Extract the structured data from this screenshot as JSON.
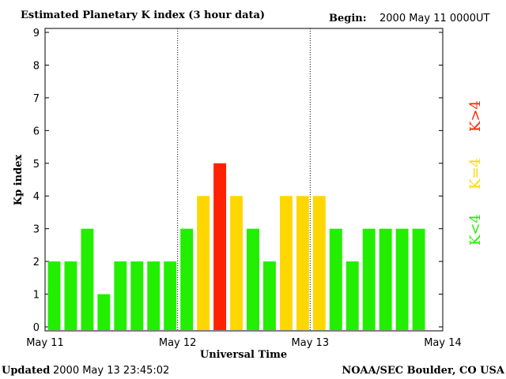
{
  "header": {
    "title": "Estimated Planetary K index (3 hour data)",
    "begin_label": "Begin:",
    "begin_value": "2000 May 11 0000UT"
  },
  "footer": {
    "updated_label": "Updated",
    "updated_value": "2000 May 13 23:45:02",
    "source": "NOAA/SEC Boulder, CO USA"
  },
  "legend": [
    {
      "label": "K<4",
      "color": "#22ee00"
    },
    {
      "label": "K=4",
      "color": "#ffd700"
    },
    {
      "label": "K>4",
      "color": "#ff2200"
    }
  ],
  "colors": {
    "low": "#22ee00",
    "equal": "#ffd700",
    "high": "#ff2200"
  },
  "chart_data": {
    "type": "bar",
    "title": "Estimated Planetary K index (3 hour data)",
    "xlabel": "Universal Time",
    "ylabel": "Kp index",
    "ylim": [
      0,
      9
    ],
    "yticks": [
      "0",
      "1",
      "2",
      "3",
      "4",
      "5",
      "6",
      "7",
      "8",
      "9"
    ],
    "xticks": [
      "May 11",
      "May 12",
      "May 13",
      "May 14"
    ],
    "grid": false,
    "day_separators": [
      "May 12",
      "May 13"
    ],
    "bar_interval_hours": 3,
    "values": [
      2,
      2,
      3,
      1,
      2,
      2,
      2,
      2,
      3,
      4,
      5,
      4,
      3,
      2,
      4,
      4,
      4,
      3,
      2,
      3,
      3,
      3,
      3
    ]
  }
}
